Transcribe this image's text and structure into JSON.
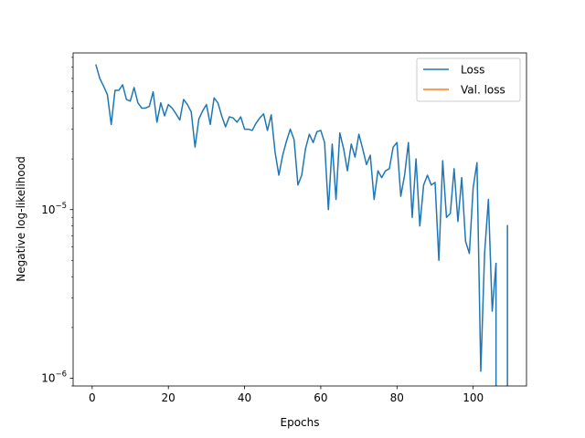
{
  "chart_data": {
    "type": "line",
    "xlabel": "Epochs",
    "ylabel": "Negative log-likelihood",
    "xlim": [
      -5,
      114
    ],
    "ylim": [
      9e-07,
      8.5e-05
    ],
    "yscale": "log",
    "grid": false,
    "legend_placement": "upper-right",
    "x_ticks": [
      0,
      20,
      40,
      60,
      80,
      100
    ],
    "x_tick_labels": [
      "0",
      "20",
      "40",
      "60",
      "80",
      "100"
    ],
    "y_ticks": [
      1e-06,
      1e-05
    ],
    "y_tick_labels": [
      {
        "base": "10",
        "exp": "−6"
      },
      {
        "base": "10",
        "exp": "−5"
      }
    ],
    "series": [
      {
        "name": "Loss",
        "color": "#1f77b4",
        "x": [
          1,
          2,
          3,
          4,
          5,
          6,
          7,
          8,
          9,
          10,
          11,
          12,
          13,
          14,
          15,
          16,
          17,
          18,
          19,
          20,
          21,
          22,
          23,
          24,
          25,
          26,
          27,
          28,
          29,
          30,
          31,
          32,
          33,
          34,
          35,
          36,
          37,
          38,
          39,
          40,
          41,
          42,
          43,
          44,
          45,
          46,
          47,
          48,
          49,
          50,
          51,
          52,
          53,
          54,
          55,
          56,
          57,
          58,
          59,
          60,
          61,
          62,
          63,
          64,
          65,
          66,
          67,
          68,
          69,
          70,
          71,
          72,
          73,
          74,
          75,
          76,
          77,
          78,
          79,
          80,
          81,
          82,
          83,
          84,
          85,
          86,
          87,
          88,
          89,
          90,
          91,
          92,
          93,
          94,
          95,
          96,
          97,
          98,
          99,
          100,
          101,
          102,
          103,
          104,
          105,
          106,
          107,
          108,
          109
        ],
        "y": [
          7.2e-05,
          6e-05,
          5.4e-05,
          4.8e-05,
          3.2e-05,
          5.1e-05,
          5.1e-05,
          5.5e-05,
          4.5e-05,
          4.4e-05,
          5.3e-05,
          4.3e-05,
          4e-05,
          4e-05,
          4.1e-05,
          5e-05,
          3.3e-05,
          4.3e-05,
          3.6e-05,
          4.2e-05,
          4e-05,
          3.7e-05,
          3.4e-05,
          4.5e-05,
          4.2e-05,
          3.8e-05,
          2.35e-05,
          3.45e-05,
          3.85e-05,
          4.2e-05,
          3.2e-05,
          4.6e-05,
          4.3e-05,
          3.6e-05,
          3.1e-05,
          3.55e-05,
          3.5e-05,
          3.3e-05,
          3.55e-05,
          3e-05,
          3e-05,
          2.95e-05,
          3.25e-05,
          3.5e-05,
          3.7e-05,
          2.95e-05,
          3.65e-05,
          2.2e-05,
          1.6e-05,
          2.1e-05,
          2.55e-05,
          3e-05,
          2.6e-05,
          1.4e-05,
          1.6e-05,
          2.3e-05,
          2.8e-05,
          2.5e-05,
          2.9e-05,
          2.95e-05,
          2.5e-05,
          1e-05,
          2.45e-05,
          1.15e-05,
          2.85e-05,
          2.3e-05,
          1.7e-05,
          2.45e-05,
          2.05e-05,
          2.8e-05,
          2.3e-05,
          1.85e-05,
          2.1e-05,
          1.15e-05,
          1.7e-05,
          1.55e-05,
          1.7e-05,
          1.75e-05,
          2.35e-05,
          2.5e-05,
          1.2e-05,
          1.6e-05,
          2.5e-05,
          9e-06,
          2e-05,
          8e-06,
          1.4e-05,
          1.6e-05,
          1.4e-05,
          1.45e-05,
          5e-06,
          1.95e-05,
          9e-06,
          9.5e-06,
          1.75e-05,
          8.5e-06,
          1.55e-05,
          6.5e-06,
          5.5e-06,
          1.35e-05,
          1.9e-05,
          1.1e-06,
          5.5e-06,
          1.15e-05,
          2.5e-06,
          4.8e-06,
          null,
          null,
          8.1e-06
        ],
        "drops_to_zero_after": [
          106,
          109
        ]
      },
      {
        "name": "Val. loss",
        "color": "#ff7f0e",
        "x": [],
        "y": []
      }
    ]
  }
}
